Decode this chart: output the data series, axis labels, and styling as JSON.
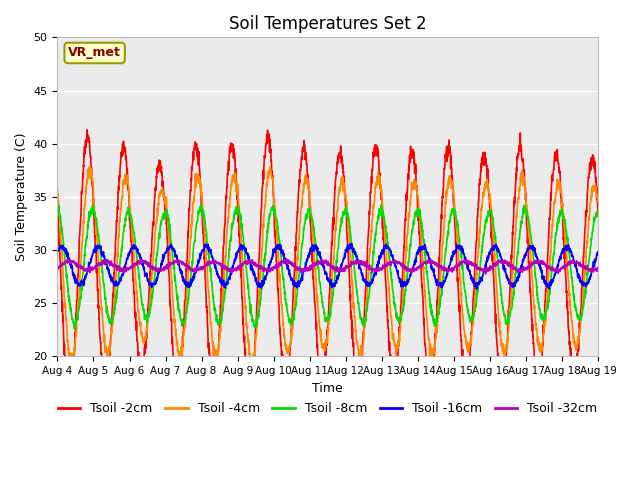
{
  "title": "Soil Temperatures Set 2",
  "xlabel": "Time",
  "ylabel": "Soil Temperature (C)",
  "ylim": [
    20,
    50
  ],
  "yticks": [
    20,
    25,
    30,
    35,
    40,
    45,
    50
  ],
  "num_days": 15,
  "x_tick_labels": [
    "Aug 4",
    "Aug 5",
    "Aug 6",
    "Aug 7",
    "Aug 8",
    "Aug 9",
    "Aug 10",
    "Aug 11",
    "Aug 12",
    "Aug 13",
    "Aug 14",
    "Aug 15",
    "Aug 16",
    "Aug 17",
    "Aug 18",
    "Aug 19"
  ],
  "annotation_text": "VR_met",
  "colors": {
    "Tsoil -2cm": "#ff0000",
    "Tsoil -4cm": "#ff8800",
    "Tsoil -8cm": "#00dd00",
    "Tsoil -16cm": "#0000ff",
    "Tsoil -32cm": "#bb00bb"
  },
  "line_width": 1.2,
  "plot_bg_color": "#ebebeb",
  "title_fontsize": 12,
  "axis_fontsize": 9,
  "legend_fontsize": 9,
  "num_points_per_day": 144,
  "depth_params": {
    "Tsoil -2cm": {
      "base": 28.5,
      "amp": 11.5,
      "phase_hr": 14.0,
      "lag_hr": 0.0,
      "noise": 0.4
    },
    "Tsoil -4cm": {
      "base": 28.5,
      "amp": 8.5,
      "phase_hr": 14.0,
      "lag_hr": 1.5,
      "noise": 0.3
    },
    "Tsoil -8cm": {
      "base": 28.5,
      "amp": 5.5,
      "phase_hr": 14.0,
      "lag_hr": 3.5,
      "noise": 0.2
    },
    "Tsoil -16cm": {
      "base": 28.5,
      "amp": 1.8,
      "phase_hr": 14.0,
      "lag_hr": 7.0,
      "noise": 0.15
    },
    "Tsoil -32cm": {
      "base": 28.5,
      "amp": 0.4,
      "phase_hr": 14.0,
      "lag_hr": 12.0,
      "noise": 0.1
    }
  }
}
